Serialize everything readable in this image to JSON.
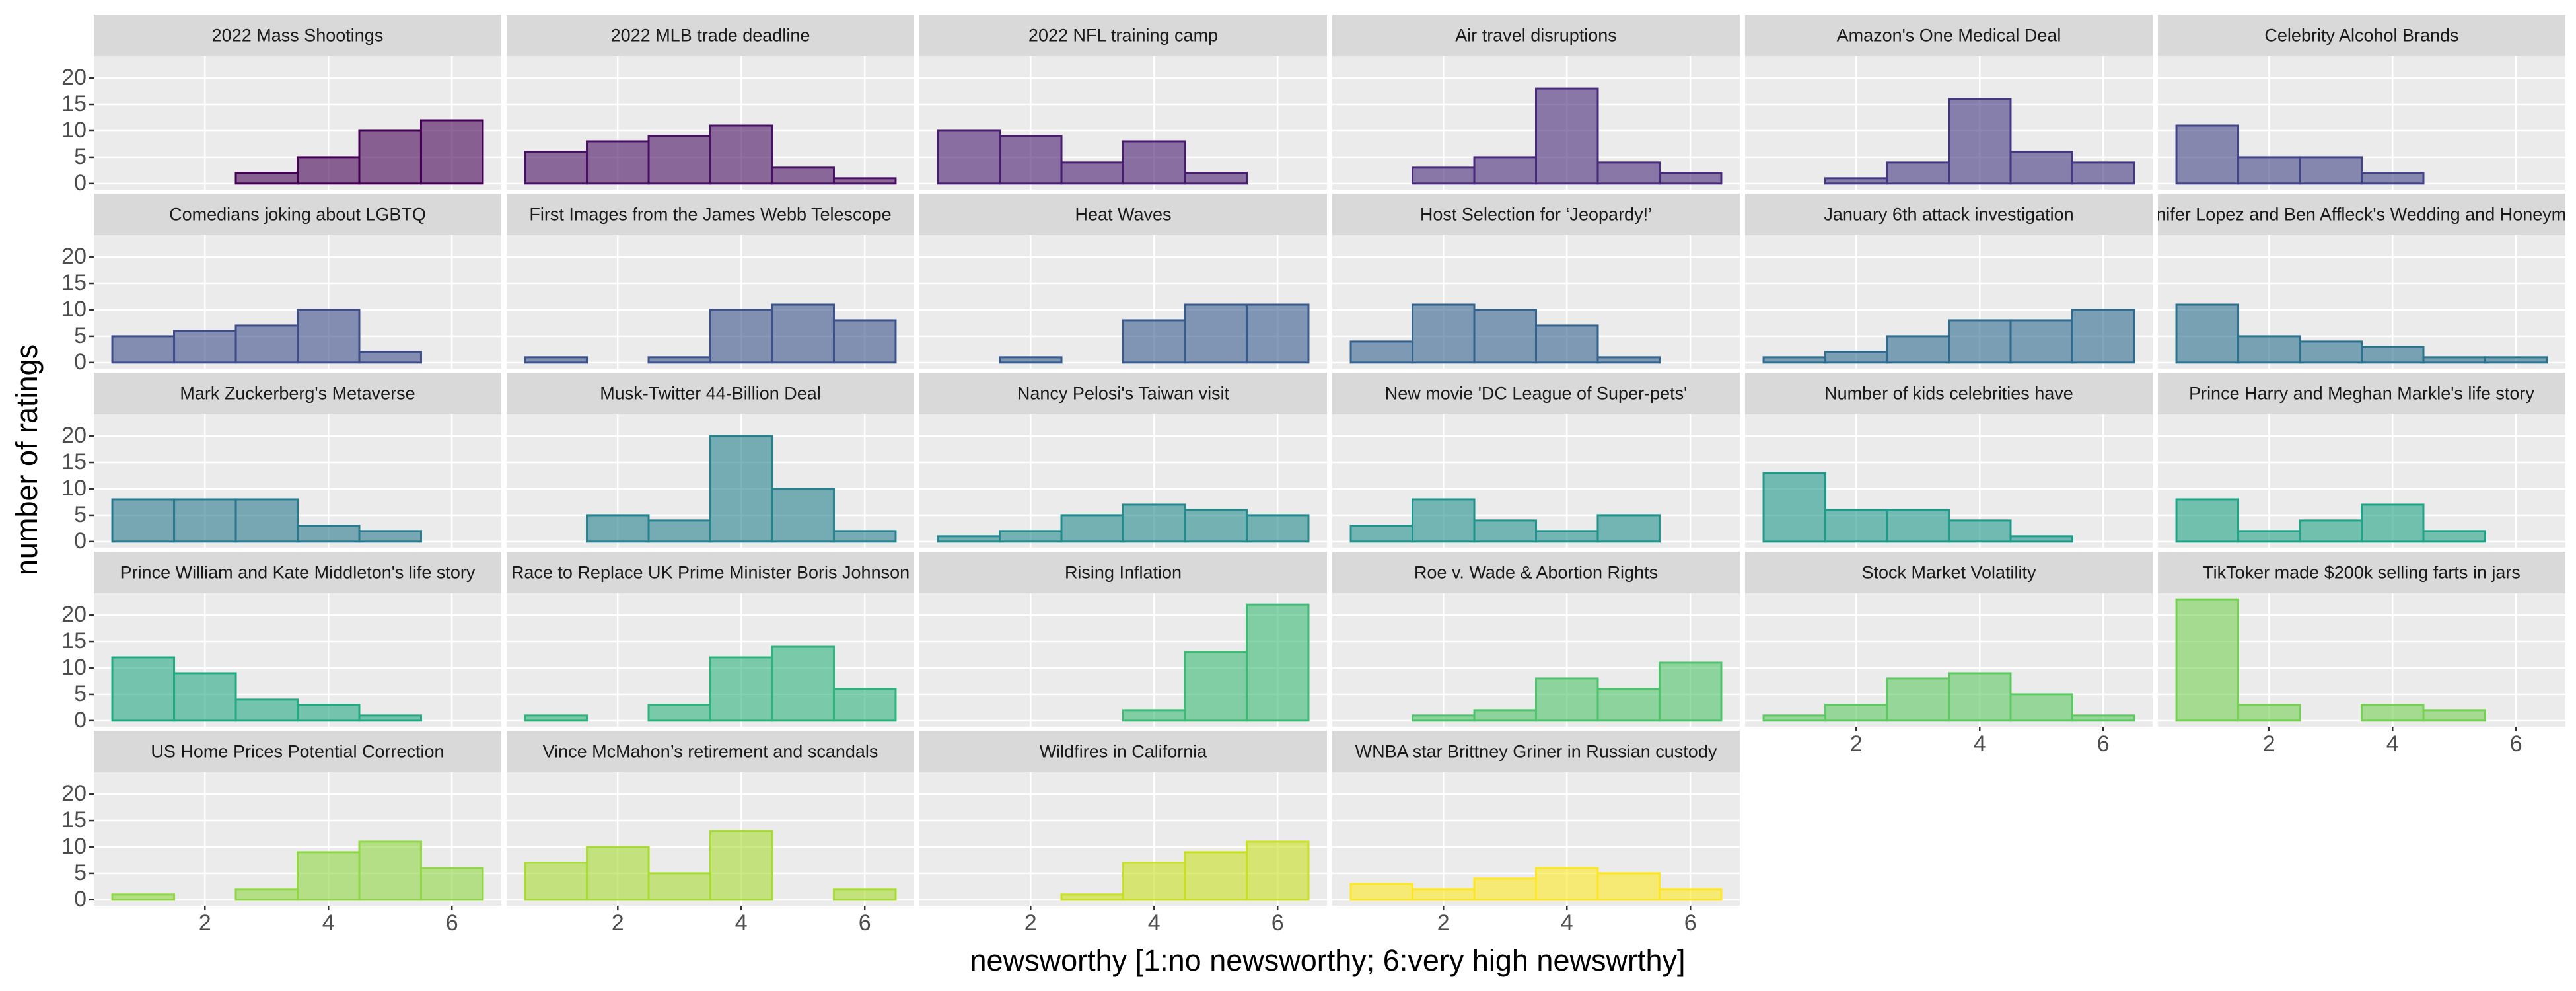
{
  "chart_data": {
    "type": "histogram",
    "xlabel": "newsworthy [1:no newsworthy; 6:very high newswrthy]",
    "ylabel": "number of ratings",
    "bins": [
      0.5,
      1.5,
      2.5,
      3.5,
      4.5,
      5.5,
      6.5
    ],
    "xlim": [
      0.2,
      6.8
    ],
    "xticks": [
      2,
      4,
      6
    ],
    "ylim": [
      -1.15,
      24.15
    ],
    "yticks": [
      0,
      5,
      10,
      15,
      20
    ],
    "grid": true,
    "panels": [
      {
        "title": "2022 Mass Shootings",
        "color": "#440154",
        "values": [
          0,
          0,
          2,
          5,
          10,
          12
        ]
      },
      {
        "title": "2022 MLB trade deadline",
        "color": "#471063",
        "values": [
          6,
          8,
          9,
          11,
          3,
          1
        ]
      },
      {
        "title": "2022 NFL training camp",
        "color": "#481d6f",
        "values": [
          10,
          9,
          4,
          8,
          2,
          0
        ]
      },
      {
        "title": "Air travel disruptions",
        "color": "#472a7a",
        "values": [
          0,
          3,
          5,
          18,
          4,
          2
        ]
      },
      {
        "title": "Amazon's One Medical Deal",
        "color": "#453781",
        "values": [
          0,
          1,
          4,
          16,
          6,
          4
        ]
      },
      {
        "title": "Celebrity Alcohol Brands",
        "color": "#414487",
        "values": [
          11,
          5,
          5,
          2,
          0,
          0
        ]
      },
      {
        "title": "Comedians joking about LGBTQ",
        "color": "#3e4c8a",
        "values": [
          5,
          6,
          7,
          10,
          2,
          0
        ]
      },
      {
        "title": "First Images from the James Webb Telescope",
        "color": "#3b528b",
        "values": [
          1,
          0,
          1,
          10,
          11,
          8
        ]
      },
      {
        "title": "Heat Waves",
        "color": "#375b8d",
        "values": [
          0,
          1,
          0,
          8,
          11,
          11
        ]
      },
      {
        "title": "Host Selection for ‘Jeopardy!’",
        "color": "#33638d",
        "values": [
          4,
          11,
          10,
          7,
          1,
          0
        ]
      },
      {
        "title": "January 6th attack investigation",
        "color": "#2f6b8e",
        "values": [
          1,
          2,
          5,
          8,
          8,
          10
        ]
      },
      {
        "title": "Jennifer Lopez and Ben Affleck's Wedding and Honeymoon",
        "color": "#2c728e",
        "values": [
          11,
          5,
          4,
          3,
          1,
          1
        ]
      },
      {
        "title": "Mark Zuckerberg's Metaverse",
        "color": "#297a8e",
        "values": [
          8,
          8,
          8,
          3,
          2,
          0
        ]
      },
      {
        "title": "Musk-Twitter 44-Billion Deal",
        "color": "#26828e",
        "values": [
          0,
          5,
          4,
          20,
          10,
          2
        ]
      },
      {
        "title": "Nancy Pelosi's Taiwan visit",
        "color": "#238a8d",
        "values": [
          1,
          2,
          5,
          7,
          6,
          5
        ]
      },
      {
        "title": "New movie 'DC League of Super-pets'",
        "color": "#21918c",
        "values": [
          3,
          8,
          4,
          2,
          5,
          0
        ]
      },
      {
        "title": "Number of kids celebrities have",
        "color": "#1f998a",
        "values": [
          13,
          6,
          6,
          4,
          1,
          0
        ]
      },
      {
        "title": "Prince Harry and Meghan Markle's life story",
        "color": "#20a386",
        "values": [
          8,
          2,
          4,
          7,
          2,
          0
        ]
      },
      {
        "title": "Prince William and Kate Middleton's life story",
        "color": "#24aa83",
        "values": [
          12,
          9,
          4,
          3,
          1,
          0
        ]
      },
      {
        "title": "Race to Replace UK Prime Minister Boris Johnson",
        "color": "#2eb37c",
        "values": [
          1,
          0,
          3,
          12,
          14,
          6
        ]
      },
      {
        "title": "Rising Inflation",
        "color": "#3bbb75",
        "values": [
          0,
          0,
          0,
          2,
          13,
          22
        ]
      },
      {
        "title": "Roe v. Wade & Abortion Rights",
        "color": "#4ec36b",
        "values": [
          0,
          1,
          2,
          8,
          6,
          11
        ]
      },
      {
        "title": "Stock Market Volatility",
        "color": "#5ec962",
        "values": [
          1,
          3,
          8,
          9,
          5,
          1
        ]
      },
      {
        "title": "TikToker made $200k selling farts in jars",
        "color": "#75d054",
        "values": [
          23,
          3,
          0,
          3,
          2,
          0
        ]
      },
      {
        "title": "US Home Prices Potential Correction",
        "color": "#8fd744",
        "values": [
          1,
          0,
          2,
          9,
          11,
          6
        ]
      },
      {
        "title": "Vince McMahon’s retirement and scandals",
        "color": "#a8db34",
        "values": [
          7,
          10,
          5,
          13,
          0,
          2
        ]
      },
      {
        "title": "Wildfires in California",
        "color": "#c8e020",
        "values": [
          0,
          0,
          1,
          7,
          9,
          11
        ]
      },
      {
        "title": "WNBA star Brittney Griner in Russian custody",
        "color": "#fde725",
        "values": [
          3,
          2,
          4,
          6,
          5,
          2
        ]
      }
    ]
  }
}
